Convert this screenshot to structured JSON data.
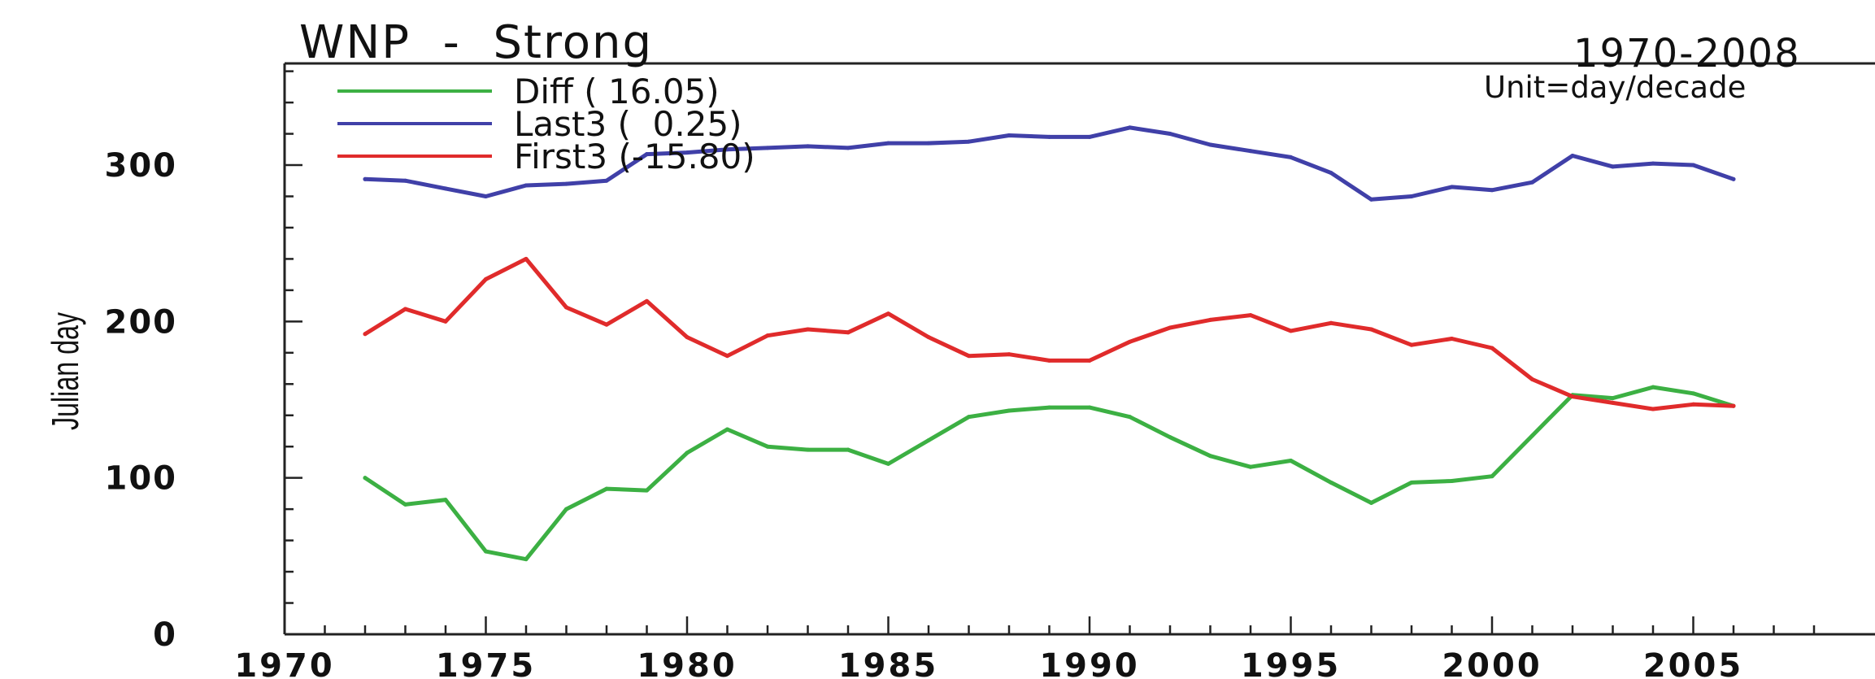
{
  "chart_data": {
    "type": "line",
    "title": "WNP  -  Strong",
    "period": "1970-2008",
    "unit": "Unit=day/decade",
    "xlabel": "",
    "ylabel": "Julian day",
    "xlim": [
      1970,
      2010
    ],
    "ylim": [
      0,
      365
    ],
    "x_ticks": [
      1970,
      1975,
      1980,
      1985,
      1990,
      1995,
      2000,
      2005
    ],
    "y_ticks": [
      0,
      100,
      200,
      300
    ],
    "grid": false,
    "legend_position": "top-left",
    "x": [
      1972,
      1973,
      1974,
      1975,
      1976,
      1977,
      1978,
      1979,
      1980,
      1981,
      1982,
      1983,
      1984,
      1985,
      1986,
      1987,
      1988,
      1989,
      1990,
      1991,
      1992,
      1993,
      1994,
      1995,
      1996,
      1997,
      1998,
      1999,
      2000,
      2001,
      2002,
      2003,
      2004,
      2005,
      2006
    ],
    "series": [
      {
        "name": "Diff",
        "legend": "Diff ( 16.05)",
        "color": "#3cb043",
        "values": [
          100,
          83,
          86,
          53,
          48,
          80,
          93,
          92,
          116,
          131,
          120,
          118,
          118,
          109,
          124,
          139,
          143,
          145,
          145,
          139,
          126,
          114,
          107,
          111,
          97,
          84,
          97,
          98,
          101,
          127,
          153,
          151,
          158,
          154,
          146
        ]
      },
      {
        "name": "Last3",
        "legend": "Last3 (  0.25)",
        "color": "#4040a8",
        "values": [
          291,
          290,
          285,
          280,
          287,
          288,
          290,
          307,
          308,
          310,
          311,
          312,
          311,
          314,
          314,
          315,
          319,
          318,
          318,
          324,
          320,
          313,
          309,
          305,
          295,
          278,
          280,
          286,
          284,
          289,
          306,
          299,
          301,
          300,
          291
        ]
      },
      {
        "name": "First3",
        "legend": "First3 (-15.80)",
        "color": "#e02b2b",
        "values": [
          192,
          208,
          200,
          227,
          240,
          209,
          198,
          213,
          190,
          178,
          191,
          195,
          193,
          205,
          190,
          178,
          179,
          175,
          175,
          187,
          196,
          201,
          204,
          194,
          199,
          195,
          185,
          189,
          183,
          163,
          152,
          148,
          144,
          147,
          146
        ]
      }
    ]
  }
}
